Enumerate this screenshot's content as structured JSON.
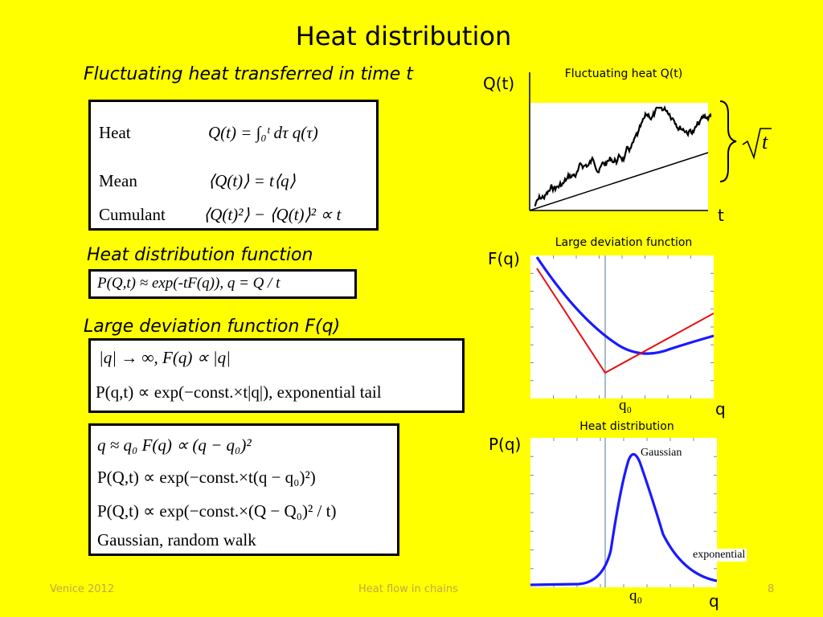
{
  "slide": {
    "title": "Heat distribution",
    "footer_left": "Venice 2012",
    "footer_center": "Heat flow in chains",
    "page_number": "8"
  },
  "section1": {
    "heading": "Fluctuating heat transferred in time t",
    "rows": [
      {
        "label": "Heat",
        "formula": "Q(t) = ∫₀ᵗ dτ q(τ)"
      },
      {
        "label": "Mean",
        "formula": "⟨Q(t)⟩ = t⟨q⟩"
      },
      {
        "label": "Cumulant",
        "formula": "⟨Q(t)²⟩ − ⟨Q(t)⟩² ∝ t"
      }
    ]
  },
  "section2": {
    "heading": "Heat distribution function",
    "formula": "P(Q,t) ≈ exp(-tF(q)),  q = Q / t"
  },
  "section3": {
    "heading": "Large deviation function F(q)",
    "line1": "|q| → ∞,    F(q) ∝ |q|",
    "line2": "P(q,t) ∝ exp(−const.×t|q|),  exponential tail"
  },
  "section4": {
    "line1": "q ≈ q₀     F(q) ∝ (q − q₀)²",
    "line2": "P(Q,t) ∝ exp(−const.×t(q − q₀)²)",
    "line3": "P(Q,t) ∝ exp(−const.×(Q − Q₀)² / t)",
    "line4": "Gaussian, random walk"
  },
  "plot_heat": {
    "title": "Fluctuating heat Q(t)",
    "ylabel": "Q(t)",
    "xlabel": "t",
    "annotation": "√t"
  },
  "plot_ldf": {
    "title": "Large deviation function",
    "ylabel": "F(q)",
    "xlabel": "q",
    "marker": "q₀"
  },
  "plot_dist": {
    "title": "Heat distribution",
    "ylabel": "P(q)",
    "xlabel": "q",
    "marker": "q₀",
    "gaussian_label": "Gaussian",
    "exponential_label": "exponential"
  },
  "colors": {
    "background": "#ffff00",
    "curve_blue": "#1a1aff",
    "curve_red": "#e81010",
    "marker_line": "#6c8cb0"
  }
}
